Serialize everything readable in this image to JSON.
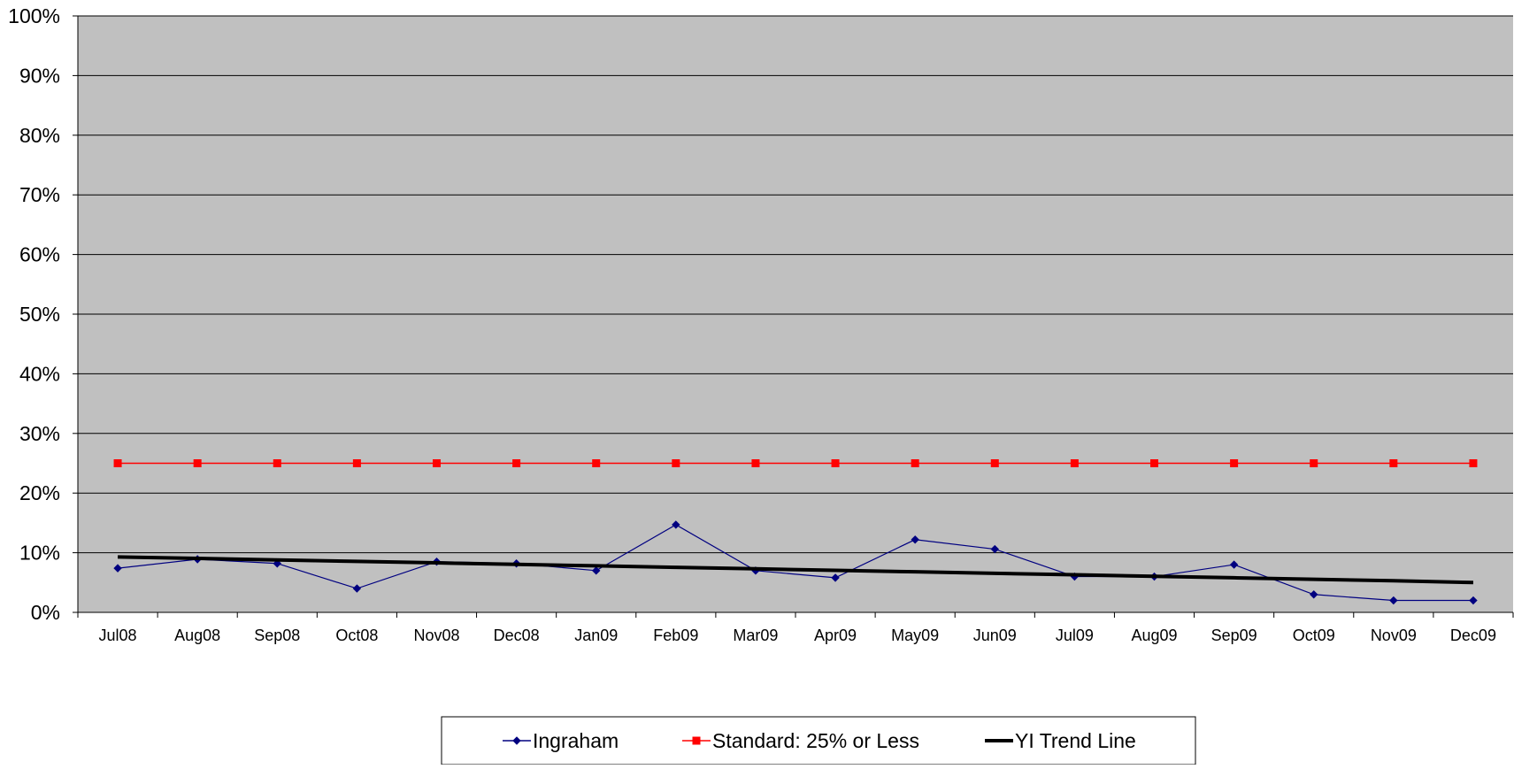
{
  "chart_data": {
    "type": "line",
    "title": "",
    "xlabel": "",
    "ylabel": "",
    "categories": [
      "Jul08",
      "Aug08",
      "Sep08",
      "Oct08",
      "Nov08",
      "Dec08",
      "Jan09",
      "Feb09",
      "Mar09",
      "Apr09",
      "May09",
      "Jun09",
      "Jul09",
      "Aug09",
      "Sep09",
      "Oct09",
      "Nov09",
      "Dec09"
    ],
    "ylim": [
      0,
      100
    ],
    "y_ticks": [
      "0%",
      "10%",
      "20%",
      "30%",
      "40%",
      "50%",
      "60%",
      "70%",
      "80%",
      "90%",
      "100%"
    ],
    "grid": true,
    "legend_position": "bottom",
    "plot_background": "#c0c0c0",
    "series": [
      {
        "name": "Ingraham",
        "color": "#000080",
        "marker": "diamond",
        "values": [
          7.4,
          8.9,
          8.2,
          4.0,
          8.5,
          8.2,
          7.0,
          14.7,
          7.0,
          5.8,
          12.2,
          10.6,
          6.0,
          6.0,
          8.0,
          3.0,
          2.0,
          2.0
        ]
      },
      {
        "name": "Standard: 25% or Less",
        "color": "#ff0000",
        "marker": "square",
        "values": [
          25,
          25,
          25,
          25,
          25,
          25,
          25,
          25,
          25,
          25,
          25,
          25,
          25,
          25,
          25,
          25,
          25,
          25
        ]
      },
      {
        "name": "YI Trend Line",
        "color": "#000000",
        "marker": "none",
        "values": [
          9.3,
          9.05,
          8.8,
          8.55,
          8.3,
          8.05,
          7.8,
          7.55,
          7.3,
          7.05,
          6.8,
          6.55,
          6.3,
          6.05,
          5.8,
          5.55,
          5.3,
          5.0
        ]
      }
    ]
  }
}
